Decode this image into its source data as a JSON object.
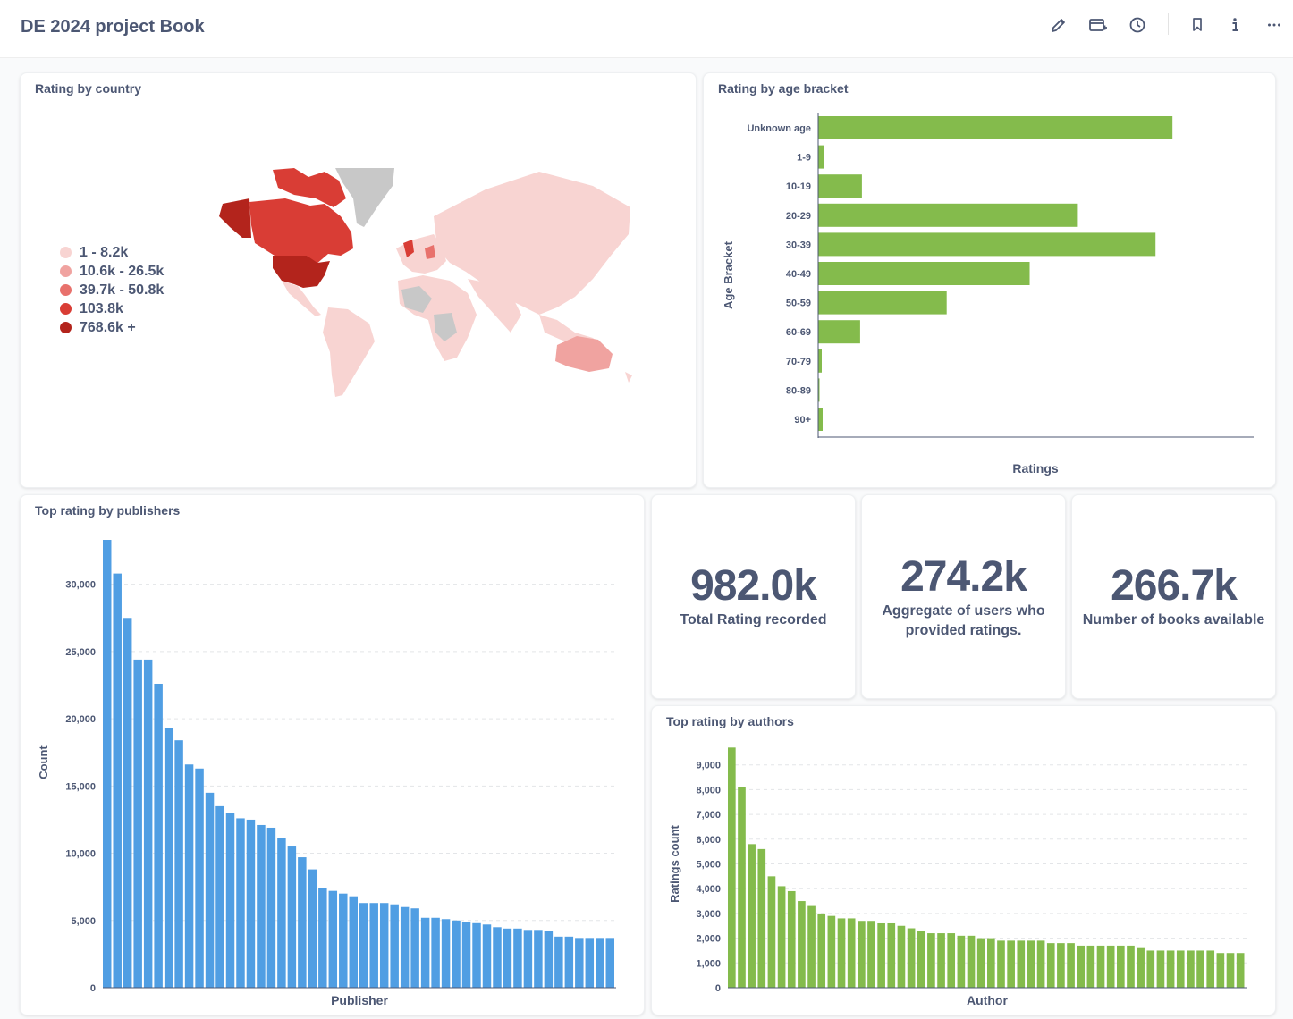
{
  "header": {
    "title": "DE 2024 project Book",
    "icons": [
      "edit-icon",
      "subscribe-icon",
      "history-icon",
      "bookmark-icon",
      "info-icon",
      "more-icon"
    ]
  },
  "map_card": {
    "title": "Rating by country",
    "legend": [
      {
        "label": "1 - 8.2k",
        "color": "#f8d4d2"
      },
      {
        "label": "10.6k - 26.5k",
        "color": "#f0a3a0"
      },
      {
        "label": "39.7k - 50.8k",
        "color": "#e8716c"
      },
      {
        "label": "103.8k",
        "color": "#d93d35"
      },
      {
        "label": "768.6k +",
        "color": "#b3241c"
      }
    ]
  },
  "scalars": [
    {
      "value": "982.0k",
      "label": "Total Rating recorded"
    },
    {
      "value": "274.2k",
      "label": "Aggregate of users who provided ratings."
    },
    {
      "value": "266.7k",
      "label": "Number of books available"
    }
  ],
  "chart_data": [
    {
      "type": "bar",
      "orientation": "horizontal",
      "title": "Rating by age bracket",
      "xlabel": "Ratings",
      "ylabel": "Age Bracket",
      "color": "#84bb4c",
      "categories": [
        "Unknown age",
        "1-9",
        "10-19",
        "20-29",
        "30-39",
        "40-49",
        "50-59",
        "60-69",
        "70-79",
        "80-89",
        "90+"
      ],
      "values": [
        397000,
        6500,
        49000,
        291000,
        378000,
        237000,
        144000,
        47000,
        4000,
        800,
        5000
      ],
      "xlim": [
        0,
        488000
      ]
    },
    {
      "type": "bar",
      "title": "Top rating by publishers",
      "xlabel": "Publisher",
      "ylabel": "Count",
      "color": "#509ee3",
      "yticks": [
        "0",
        "5,000",
        "10,000",
        "15,000",
        "20,000",
        "25,000",
        "30,000"
      ],
      "ylim": [
        0,
        33500
      ],
      "values": [
        33300,
        30800,
        27500,
        24400,
        24400,
        22600,
        19300,
        18400,
        16600,
        16300,
        14500,
        13500,
        13000,
        12600,
        12500,
        12100,
        11900,
        11100,
        10500,
        9700,
        8800,
        7400,
        7200,
        7000,
        6800,
        6300,
        6300,
        6300,
        6200,
        6000,
        5900,
        5200,
        5200,
        5100,
        5000,
        4900,
        4800,
        4700,
        4500,
        4400,
        4400,
        4300,
        4300,
        4200,
        3800,
        3800,
        3700,
        3700,
        3700,
        3700
      ]
    },
    {
      "type": "bar",
      "title": "Top rating by authors",
      "xlabel": "Author",
      "ylabel": "Ratings count",
      "color": "#84bb4c",
      "yticks": [
        "0",
        "1,000",
        "2,000",
        "3,000",
        "4,000",
        "5,000",
        "6,000",
        "7,000",
        "8,000",
        "9,000"
      ],
      "ylim": [
        0,
        10000
      ],
      "values": [
        9700,
        8100,
        5800,
        5600,
        4500,
        4100,
        3900,
        3500,
        3300,
        3000,
        2900,
        2800,
        2800,
        2700,
        2700,
        2600,
        2600,
        2500,
        2400,
        2300,
        2200,
        2200,
        2200,
        2100,
        2100,
        2000,
        2000,
        1900,
        1900,
        1900,
        1900,
        1900,
        1800,
        1800,
        1800,
        1700,
        1700,
        1700,
        1700,
        1700,
        1700,
        1600,
        1500,
        1500,
        1500,
        1500,
        1500,
        1500,
        1500,
        1400,
        1400,
        1400
      ]
    }
  ]
}
